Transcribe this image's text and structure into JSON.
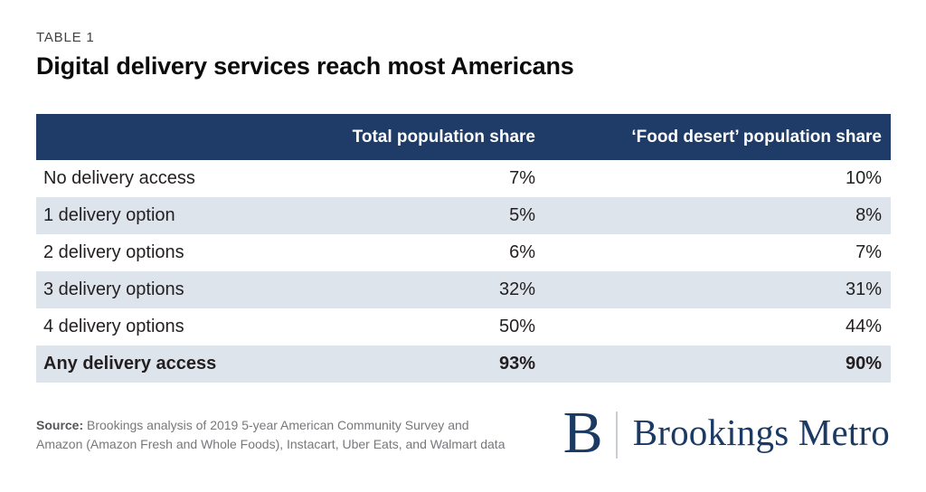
{
  "table_label": "TABLE 1",
  "title": "Digital delivery services reach most Americans",
  "table": {
    "columns": [
      "",
      "Total population share",
      "‘Food desert’ population share"
    ],
    "rows": [
      {
        "label": "No delivery access",
        "total": "7%",
        "food_desert": "10%"
      },
      {
        "label": "1 delivery option",
        "total": "5%",
        "food_desert": "8%"
      },
      {
        "label": "2 delivery options",
        "total": "6%",
        "food_desert": "7%"
      },
      {
        "label": "3 delivery options",
        "total": "32%",
        "food_desert": "31%"
      },
      {
        "label": "4 delivery options",
        "total": "50%",
        "food_desert": "44%"
      },
      {
        "label": "Any delivery access",
        "total": "93%",
        "food_desert": "90%"
      }
    ]
  },
  "chart_data": {
    "type": "table",
    "title": "Digital delivery services reach most Americans",
    "table_label": "TABLE 1",
    "categories": [
      "No delivery access",
      "1 delivery option",
      "2 delivery options",
      "3 delivery options",
      "4 delivery options",
      "Any delivery access"
    ],
    "series": [
      {
        "name": "Total population share",
        "values": [
          7,
          5,
          6,
          32,
          50,
          93
        ],
        "unit": "%"
      },
      {
        "name": "‘Food desert’ population share",
        "values": [
          10,
          8,
          7,
          31,
          44,
          90
        ],
        "unit": "%"
      }
    ],
    "layout_hints": {
      "striped_rows": true,
      "header_background": "#1f3b67",
      "stripe_color": "#dde4ec",
      "last_row_bold": true
    }
  },
  "footer": {
    "source_label": "Source:",
    "source_line1": "Brookings analysis of 2019 5-year American Community Survey and",
    "source_line2": "Amazon (Amazon Fresh and Whole Foods), Instacart, Uber Eats, and Walmart data"
  },
  "logo": {
    "mark": "B",
    "text": "Brookings Metro"
  },
  "colors": {
    "header_navy": "#1f3b67",
    "row_stripe": "#dde4ec",
    "logo_navy": "#1a3a64",
    "source_gray": "#77787b",
    "text_dark": "#231f20"
  }
}
